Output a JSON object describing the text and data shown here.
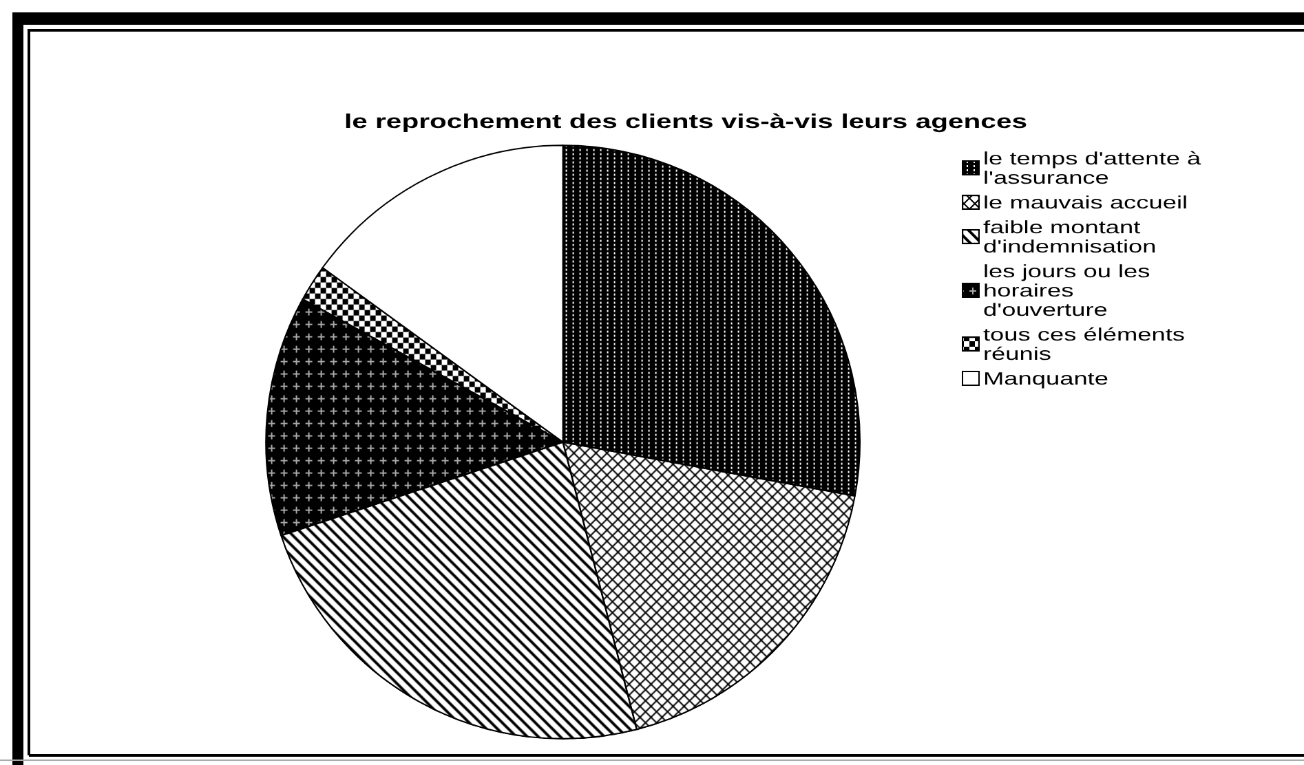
{
  "chart_data": {
    "type": "pie",
    "title": "le reprochement des clients vis-à-vis leurs agences",
    "categories": [
      "le temps d'attente à l'assurance",
      "le mauvais accueil",
      "faible montant d'indemnisation",
      "les jours ou les horaires d'ouverture",
      "tous ces éléments réunis",
      "Manquante"
    ],
    "values": [
      27.9,
      18.1,
      23.9,
      13.1,
      2.0,
      15.0
    ],
    "colors": [
      "#000000",
      "#000000",
      "#000000",
      "#000000",
      "#000000",
      "#ffffff"
    ],
    "legend": "top right"
  }
}
